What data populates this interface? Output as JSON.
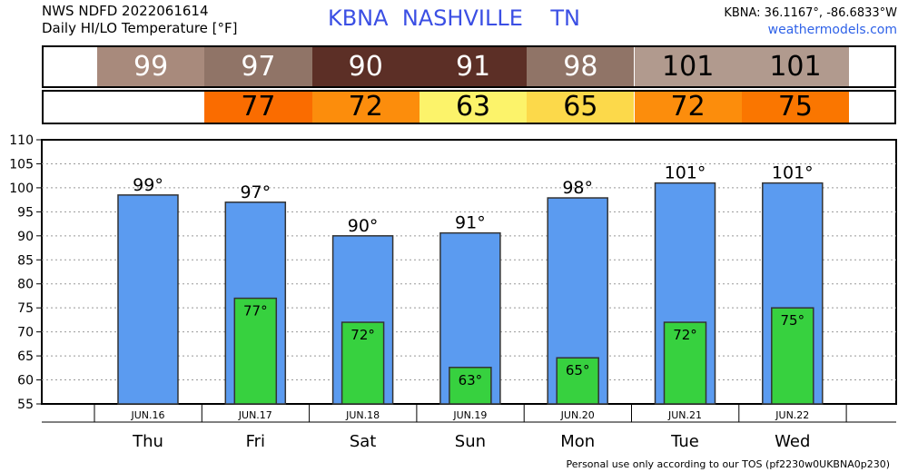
{
  "header": {
    "line1": "NWS NDFD 2022061614",
    "line2": "Daily HI/LO Temperature [°F]",
    "station": "KBNA",
    "city": "NASHVILLE",
    "state": "TN",
    "coords": "KBNA: 36.1167°, -86.6833°W",
    "site": "weathermodels.com"
  },
  "hi_strip": [
    {
      "value": "99",
      "color": "#a88a7c"
    },
    {
      "value": "97",
      "color": "#907467"
    },
    {
      "value": "90",
      "color": "#5c2f26"
    },
    {
      "value": "91",
      "color": "#5c2f26"
    },
    {
      "value": "98",
      "color": "#907467"
    },
    {
      "value": "101",
      "color": "#b19a8e"
    },
    {
      "value": "101",
      "color": "#b19a8e"
    }
  ],
  "lo_strip": [
    {
      "value": "",
      "color": "#ffffff"
    },
    {
      "value": "77",
      "color": "#fa6c00"
    },
    {
      "value": "72",
      "color": "#fc8d0c"
    },
    {
      "value": "63",
      "color": "#fcf36a"
    },
    {
      "value": "65",
      "color": "#fcd94a"
    },
    {
      "value": "72",
      "color": "#fc8d0c"
    },
    {
      "value": "75",
      "color": "#fa7600"
    }
  ],
  "chart_data": {
    "type": "bar",
    "categories": [
      "JUN.16",
      "JUN.17",
      "JUN.18",
      "JUN.19",
      "JUN.20",
      "JUN.21",
      "JUN.22"
    ],
    "weekdays": [
      "Thu",
      "Fri",
      "Sat",
      "Sun",
      "Mon",
      "Tue",
      "Wed"
    ],
    "series": [
      {
        "values": [
          98.5,
          97,
          90,
          90.6,
          97.9,
          101,
          101
        ],
        "labels": [
          "99°",
          "97°",
          "90°",
          "91°",
          "98°",
          "101°",
          "101°"
        ],
        "color": "#5b9bf0"
      },
      {
        "values": [
          null,
          77,
          72,
          62.6,
          64.6,
          72,
          75
        ],
        "labels": [
          "",
          "77°",
          "72°",
          "63°",
          "65°",
          "72°",
          "75°"
        ],
        "color": "#37d13f"
      }
    ],
    "yticks": [
      55,
      60,
      65,
      70,
      75,
      80,
      85,
      90,
      95,
      100,
      105,
      110
    ],
    "ylim": [
      55,
      110
    ],
    "grid": true
  },
  "footer": "Personal use only according to our TOS (pf2230w0UKBNA0p230)"
}
